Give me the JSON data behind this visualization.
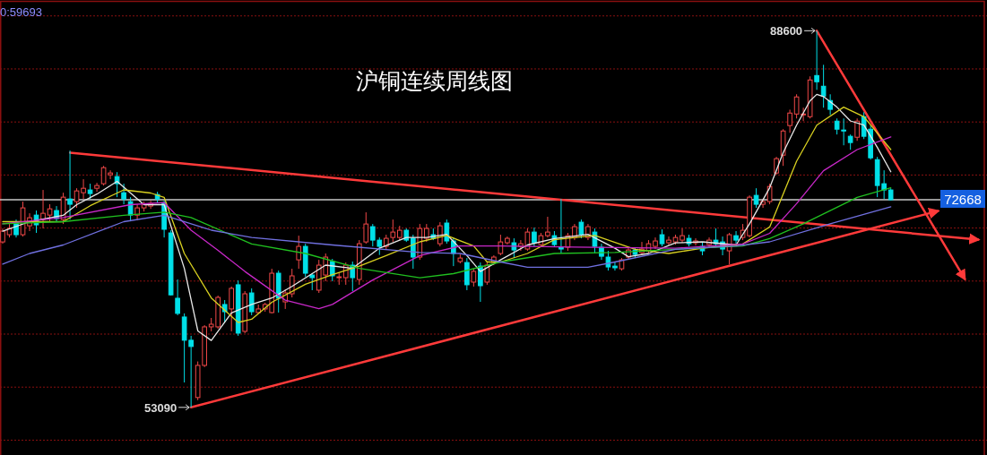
{
  "chart_data": {
    "type": "candlestick",
    "title": "沪铜连续周线图",
    "categories": [
      null,
      null,
      null,
      null,
      null,
      null,
      null,
      null,
      null,
      null,
      null,
      null,
      null,
      null,
      null,
      null,
      null,
      null,
      null,
      null,
      null,
      null,
      null,
      null,
      null,
      null,
      null,
      null,
      null,
      null,
      null,
      null,
      null,
      null,
      null,
      null,
      null,
      null,
      null,
      null,
      null,
      null,
      null,
      null,
      null,
      null,
      null,
      null,
      null,
      null,
      null,
      null,
      null,
      null,
      null,
      null,
      null,
      null,
      null,
      null,
      null,
      null,
      null,
      null,
      null,
      null,
      null,
      null,
      null,
      null,
      null,
      null,
      null,
      null,
      null,
      null,
      null,
      null,
      null,
      null,
      null,
      null,
      null,
      null,
      null,
      null,
      null,
      null,
      null,
      null,
      null,
      null,
      null,
      null,
      null,
      null,
      null,
      null,
      null,
      null,
      null,
      null,
      null,
      null,
      null,
      null,
      null,
      null,
      null,
      null,
      null,
      null,
      null,
      null,
      null,
      null,
      null,
      null,
      null,
      null,
      null,
      null,
      null,
      null,
      null,
      null,
      null,
      null,
      null,
      null,
      null,
      null,
      null,
      null,
      null,
      null,
      null,
      null,
      null,
      null,
      null,
      null,
      null,
      null,
      null,
      null
    ],
    "ohlc": [
      [
        68690,
        69960,
        68520,
        69710
      ],
      [
        69370,
        70380,
        69110,
        69960
      ],
      [
        70550,
        70800,
        69110,
        69370
      ],
      [
        69370,
        72490,
        69200,
        71900
      ],
      [
        70210,
        71390,
        69710,
        70970
      ],
      [
        71220,
        71650,
        69540,
        70300
      ],
      [
        70800,
        73590,
        69960,
        71390
      ],
      [
        71220,
        72240,
        70550,
        71810
      ],
      [
        71650,
        72070,
        70550,
        70890
      ],
      [
        70800,
        73330,
        70380,
        72910
      ],
      [
        72740,
        77300,
        70800,
        72240
      ],
      [
        72490,
        73750,
        71900,
        73500
      ],
      [
        73330,
        74600,
        72740,
        73750
      ],
      [
        73590,
        74180,
        72740,
        73250
      ],
      [
        73750,
        74260,
        73420,
        74010
      ],
      [
        74180,
        75860,
        74010,
        75690
      ],
      [
        75020,
        75440,
        74600,
        75190
      ],
      [
        74850,
        75270,
        72910,
        74180
      ],
      [
        73330,
        74180,
        72240,
        72740
      ],
      [
        72490,
        72910,
        70630,
        71220
      ],
      [
        71220,
        72240,
        70720,
        71900
      ],
      [
        71900,
        72490,
        71560,
        72240
      ],
      [
        72070,
        72570,
        71810,
        72320
      ],
      [
        73160,
        73420,
        72400,
        72740
      ],
      [
        72400,
        72570,
        69110,
        69880
      ],
      [
        69540,
        69790,
        63630,
        63700
      ],
      [
        63380,
        65150,
        61780,
        61950
      ],
      [
        61610,
        61950,
        55440,
        59420
      ],
      [
        59420,
        59840,
        53090,
        58830
      ],
      [
        54020,
        57420,
        53770,
        57050
      ],
      [
        57050,
        60840,
        56890,
        60680
      ],
      [
        60680,
        61520,
        60260,
        60930
      ],
      [
        60680,
        63630,
        60510,
        63460
      ],
      [
        62790,
        63210,
        61100,
        62110
      ],
      [
        62370,
        64480,
        60260,
        64310
      ],
      [
        64650,
        65060,
        59840,
        60090
      ],
      [
        60260,
        64050,
        60090,
        63800
      ],
      [
        63880,
        64310,
        61780,
        62110
      ],
      [
        62030,
        62790,
        61950,
        62370
      ],
      [
        62370,
        62960,
        62110,
        62790
      ],
      [
        62030,
        66160,
        61950,
        65740
      ],
      [
        65740,
        65990,
        62030,
        63380
      ],
      [
        63040,
        64220,
        62370,
        63880
      ],
      [
        63800,
        66160,
        63460,
        65490
      ],
      [
        67000,
        69280,
        66160,
        68270
      ],
      [
        68270,
        68520,
        65400,
        65740
      ],
      [
        65570,
        65740,
        64140,
        65320
      ],
      [
        64140,
        67000,
        63880,
        66500
      ],
      [
        65570,
        67600,
        64990,
        67260
      ],
      [
        66840,
        67090,
        64990,
        65490
      ],
      [
        65320,
        65740,
        64650,
        65400
      ],
      [
        65320,
        66750,
        64650,
        66500
      ],
      [
        66500,
        66840,
        64050,
        65320
      ],
      [
        65150,
        68860,
        64650,
        68520
      ],
      [
        68690,
        71480,
        68520,
        70380
      ],
      [
        70130,
        70380,
        68270,
        68860
      ],
      [
        68860,
        69110,
        67460,
        68270
      ],
      [
        68270,
        69370,
        68020,
        69030
      ],
      [
        69110,
        70800,
        68690,
        69620
      ],
      [
        69110,
        70210,
        68860,
        69790
      ],
      [
        69790,
        69960,
        68690,
        68860
      ],
      [
        69030,
        69370,
        66160,
        67260
      ],
      [
        67260,
        70380,
        67000,
        69960
      ],
      [
        69030,
        70380,
        68690,
        69960
      ],
      [
        69370,
        69960,
        68860,
        69030
      ],
      [
        68520,
        70550,
        68270,
        70210
      ],
      [
        70470,
        70800,
        68520,
        68780
      ],
      [
        68780,
        69110,
        66410,
        67600
      ],
      [
        66840,
        67510,
        66670,
        67170
      ],
      [
        66750,
        67170,
        64140,
        64650
      ],
      [
        64900,
        66160,
        64480,
        65910
      ],
      [
        66410,
        66750,
        63040,
        64560
      ],
      [
        64900,
        66750,
        64650,
        66500
      ],
      [
        66750,
        67430,
        66500,
        67260
      ],
      [
        67600,
        69370,
        67430,
        68690
      ],
      [
        68610,
        69200,
        68440,
        69030
      ],
      [
        68610,
        69030,
        67170,
        67930
      ],
      [
        68270,
        68860,
        67850,
        68520
      ],
      [
        68020,
        69960,
        67850,
        69620
      ],
      [
        69620,
        70040,
        68270,
        68610
      ],
      [
        68440,
        69540,
        68190,
        69280
      ],
      [
        69280,
        71060,
        69110,
        69620
      ],
      [
        69280,
        69710,
        68190,
        68440
      ],
      [
        68190,
        72740,
        67600,
        68020
      ],
      [
        68190,
        69540,
        67850,
        69280
      ],
      [
        69110,
        70380,
        68860,
        70130
      ],
      [
        70550,
        70800,
        69030,
        69370
      ],
      [
        69110,
        70380,
        68860,
        70130
      ],
      [
        69620,
        69960,
        67600,
        68270
      ],
      [
        68190,
        68520,
        67000,
        67340
      ],
      [
        67260,
        67850,
        65990,
        66330
      ],
      [
        66410,
        66840,
        65990,
        66250
      ],
      [
        66160,
        67170,
        65990,
        67000
      ],
      [
        67260,
        68190,
        67000,
        67930
      ],
      [
        67930,
        68190,
        67170,
        67510
      ],
      [
        67680,
        68690,
        67430,
        68020
      ],
      [
        67850,
        68860,
        67600,
        68520
      ],
      [
        68270,
        69110,
        68020,
        68780
      ],
      [
        69370,
        69870,
        68270,
        68520
      ],
      [
        68610,
        69200,
        68350,
        68860
      ],
      [
        68690,
        69370,
        68440,
        69110
      ],
      [
        68860,
        69960,
        68610,
        69280
      ],
      [
        69030,
        69370,
        68270,
        68520
      ],
      [
        68610,
        69030,
        68350,
        68780
      ],
      [
        68270,
        68690,
        67430,
        67850
      ],
      [
        68440,
        69110,
        68190,
        68860
      ],
      [
        68860,
        69960,
        68190,
        68520
      ],
      [
        68690,
        69200,
        67430,
        68020
      ],
      [
        67850,
        69540,
        66580,
        69370
      ],
      [
        69280,
        69710,
        68520,
        68860
      ],
      [
        69110,
        70380,
        68860,
        69790
      ],
      [
        69280,
        73080,
        69110,
        72910
      ],
      [
        73080,
        73750,
        71900,
        72240
      ],
      [
        72240,
        72740,
        71900,
        72490
      ],
      [
        72490,
        74180,
        72240,
        73920
      ],
      [
        75190,
        76710,
        75020,
        76540
      ],
      [
        76870,
        79320,
        75860,
        79150
      ],
      [
        79660,
        81160,
        78980,
        80840
      ],
      [
        80750,
        82610,
        80330,
        82360
      ],
      [
        80670,
        81350,
        80080,
        80750
      ],
      [
        80500,
        84300,
        80330,
        83960
      ],
      [
        84380,
        88600,
        83030,
        83790
      ],
      [
        83370,
        85390,
        81350,
        82440
      ],
      [
        82020,
        82610,
        80670,
        81190
      ],
      [
        80080,
        80330,
        78820,
        79320
      ],
      [
        79240,
        80330,
        77800,
        79150
      ],
      [
        78650,
        78820,
        77380,
        78060
      ],
      [
        78560,
        80330,
        78220,
        80080
      ],
      [
        80500,
        80920,
        78390,
        78650
      ],
      [
        79320,
        79660,
        76450,
        76620
      ],
      [
        76450,
        76710,
        72910,
        74010
      ],
      [
        74180,
        75440,
        72740,
        73590
      ],
      [
        73590,
        73750,
        72600,
        72668
      ],
      null,
      null,
      null,
      null,
      null,
      null,
      null,
      null,
      null,
      null,
      null,
      null,
      null
    ],
    "colors": [
      "#f04848",
      "#f04848",
      "#00e0e8",
      "#f04848",
      "#f04848",
      "#00e0e8",
      "#f04848",
      "#f04848",
      "#00e0e8",
      "#f04848",
      "#00e0e8",
      "#f04848",
      "#f04848",
      "#00e0e8",
      "#f04848",
      "#f04848",
      "#f04848",
      "#00e0e8",
      "#00e0e8",
      "#00e0e8",
      "#f04848",
      "#f04848",
      "#f04848",
      "#00e0e8",
      "#00e0e8",
      "#00e0e8",
      "#00e0e8",
      "#00e0e8",
      "#00e0e8",
      "#f04848",
      "#f04848",
      "#f04848",
      "#f04848",
      "#00e0e8",
      "#f04848",
      "#00e0e8",
      "#f04848",
      "#00e0e8",
      "#f04848",
      "#f04848",
      "#f04848",
      "#00e0e8",
      "#f04848",
      "#f04848",
      "#f04848",
      "#00e0e8",
      "#00e0e8",
      "#f04848",
      "#f04848",
      "#00e0e8",
      "#f04848",
      "#f04848",
      "#00e0e8",
      "#f04848",
      "#f04848",
      "#00e0e8",
      "#00e0e8",
      "#f04848",
      "#f04848",
      "#f04848",
      "#00e0e8",
      "#00e0e8",
      "#f04848",
      "#f04848",
      "#00e0e8",
      "#f04848",
      "#00e0e8",
      "#00e0e8",
      "#f04848",
      "#00e0e8",
      "#f04848",
      "#00e0e8",
      "#f04848",
      "#f04848",
      "#f04848",
      "#f04848",
      "#00e0e8",
      "#f04848",
      "#f04848",
      "#00e0e8",
      "#f04848",
      "#f04848",
      "#00e0e8",
      "#00e0e8",
      "#f04848",
      "#f04848",
      "#00e0e8",
      "#f04848",
      "#00e0e8",
      "#00e0e8",
      "#00e0e8",
      "#00e0e8",
      "#f04848",
      "#f04848",
      "#00e0e8",
      "#f04848",
      "#f04848",
      "#f04848",
      "#00e0e8",
      "#f04848",
      "#f04848",
      "#f04848",
      "#00e0e8",
      "#f04848",
      "#00e0e8",
      "#f04848",
      "#00e0e8",
      "#00e0e8",
      "#f04848",
      "#00e0e8",
      "#f04848",
      "#f04848",
      "#00e0e8",
      "#f04848",
      "#f04848",
      "#f04848",
      "#f04848",
      "#f04848",
      "#f04848",
      "#f04848",
      "#f04848",
      "#00e0e8",
      "#00e0e8",
      "#00e0e8",
      "#00e0e8",
      "#00e0e8",
      "#00e0e8",
      "#f04848",
      "#00e0e8",
      "#00e0e8",
      "#00e0e8",
      "#00e0e8",
      "#00e0e8",
      null,
      null,
      null,
      null,
      null,
      null,
      null,
      null,
      null,
      null,
      null,
      null,
      null
    ],
    "series": [
      {
        "type": "line",
        "color": "#e8e8e8",
        "values": [
          69700,
          null,
          null,
          null,
          70600,
          null,
          null,
          null,
          null,
          71200,
          null,
          72200,
          null,
          null,
          73200,
          null,
          null,
          74400,
          null,
          null,
          null,
          72200,
          null,
          null,
          72200,
          null,
          null,
          66200,
          null,
          60300,
          null,
          59400,
          null,
          null,
          62000,
          null,
          null,
          62800,
          null,
          null,
          63400,
          null,
          null,
          64500,
          null,
          null,
          null,
          null,
          66500,
          null,
          null,
          null,
          66200,
          null,
          null,
          null,
          68100,
          null,
          null,
          null,
          69100,
          null,
          null,
          69100,
          null,
          null,
          69400,
          null,
          null,
          67400,
          null,
          65900,
          null,
          null,
          67000,
          null,
          null,
          null,
          68400,
          null,
          null,
          null,
          69000,
          null,
          null,
          null,
          null,
          69400,
          null,
          null,
          null,
          68100,
          null,
          67300,
          null,
          null,
          67600,
          null,
          null,
          null,
          68600,
          null,
          null,
          null,
          68700,
          null,
          null,
          null,
          null,
          68400,
          null,
          70400,
          null,
          null,
          73800,
          null,
          77100,
          null,
          79700,
          null,
          82000,
          82600,
          82400,
          null,
          81400,
          null,
          80100,
          null,
          79700,
          null,
          77600,
          null,
          75300,
          null,
          null,
          null,
          null,
          null,
          null,
          null,
          null,
          null,
          null,
          null,
          null,
          null
        ]
      },
      {
        "type": "line",
        "color": "#d8d020",
        "values": [
          70600,
          null,
          null,
          null,
          null,
          null,
          null,
          null,
          null,
          70600,
          null,
          null,
          null,
          72100,
          null,
          null,
          null,
          null,
          73600,
          null,
          null,
          null,
          73300,
          null,
          72900,
          null,
          null,
          67600,
          null,
          null,
          null,
          63400,
          null,
          null,
          null,
          61100,
          null,
          61400,
          null,
          null,
          63000,
          null,
          null,
          null,
          null,
          64700,
          null,
          null,
          null,
          65600,
          null,
          null,
          null,
          66400,
          null,
          null,
          null,
          67400,
          null,
          null,
          null,
          null,
          68700,
          null,
          null,
          null,
          69300,
          null,
          null,
          null,
          68300,
          null,
          66800,
          null,
          66800,
          null,
          null,
          null,
          67600,
          null,
          null,
          null,
          68900,
          null,
          null,
          null,
          null,
          null,
          69300,
          null,
          null,
          null,
          null,
          null,
          68000,
          null,
          null,
          null,
          null,
          67600,
          null,
          null,
          null,
          null,
          68100,
          null,
          null,
          null,
          null,
          null,
          68500,
          null,
          null,
          null,
          70100,
          null,
          null,
          null,
          76300,
          null,
          null,
          79700,
          null,
          null,
          null,
          81400,
          null,
          null,
          80500,
          null,
          null,
          null,
          77400,
          null,
          null,
          null,
          null,
          null,
          null,
          null,
          null,
          null,
          null,
          null,
          null,
          null
        ]
      },
      {
        "type": "line",
        "color": "#c828c8",
        "values": [
          70400,
          null,
          null,
          null,
          null,
          null,
          null,
          null,
          null,
          71000,
          null,
          null,
          null,
          null,
          null,
          null,
          null,
          null,
          null,
          72200,
          null,
          null,
          null,
          null,
          72400,
          null,
          null,
          null,
          69800,
          null,
          null,
          null,
          67900,
          null,
          null,
          null,
          65900,
          null,
          null,
          null,
          null,
          null,
          63200,
          null,
          null,
          null,
          null,
          62400,
          null,
          62800,
          null,
          null,
          null,
          null,
          null,
          65100,
          null,
          null,
          null,
          null,
          null,
          null,
          67400,
          null,
          null,
          null,
          null,
          null,
          68300,
          null,
          null,
          null,
          null,
          null,
          68300,
          null,
          null,
          null,
          null,
          null,
          null,
          null,
          null,
          null,
          null,
          68200,
          null,
          null,
          null,
          null,
          null,
          null,
          null,
          null,
          null,
          null,
          null,
          null,
          null,
          null,
          68100,
          null,
          null,
          null,
          null,
          null,
          null,
          null,
          null,
          null,
          68500,
          null,
          null,
          null,
          69500,
          null,
          null,
          null,
          72300,
          null,
          null,
          null,
          75400,
          null,
          null,
          null,
          null,
          77400,
          null,
          null,
          null,
          null,
          78600,
          null,
          null,
          null,
          null,
          null,
          null,
          null,
          null,
          null,
          null,
          null,
          null,
          null
        ]
      },
      {
        "type": "line",
        "color": "#20c020",
        "values": [
          70400,
          null,
          null,
          null,
          null,
          null,
          null,
          null,
          null,
          70600,
          null,
          null,
          null,
          null,
          null,
          null,
          null,
          null,
          71200,
          null,
          null,
          null,
          null,
          null,
          71500,
          null,
          null,
          null,
          71000,
          null,
          null,
          null,
          null,
          null,
          null,
          null,
          null,
          68500,
          null,
          null,
          null,
          null,
          null,
          null,
          null,
          67600,
          null,
          null,
          null,
          null,
          null,
          null,
          null,
          66200,
          null,
          null,
          null,
          null,
          null,
          null,
          null,
          null,
          65300,
          null,
          null,
          null,
          null,
          65700,
          null,
          null,
          null,
          null,
          null,
          null,
          66800,
          null,
          null,
          null,
          null,
          null,
          null,
          null,
          67600,
          null,
          null,
          null,
          null,
          null,
          null,
          null,
          null,
          67700,
          null,
          null,
          null,
          null,
          null,
          null,
          null,
          null,
          68000,
          null,
          null,
          null,
          null,
          null,
          null,
          null,
          null,
          null,
          68300,
          null,
          null,
          null,
          69000,
          null,
          null,
          null,
          null,
          70400,
          null,
          null,
          null,
          null,
          null,
          null,
          null,
          72900,
          null,
          null,
          null,
          null,
          73800,
          null,
          null,
          null,
          null,
          null,
          null,
          null,
          null,
          null,
          null,
          null,
          null,
          null
        ]
      },
      {
        "type": "line",
        "color": "#7070e0",
        "values": [
          66600,
          null,
          null,
          null,
          67600,
          null,
          null,
          null,
          null,
          68400,
          null,
          null,
          null,
          null,
          null,
          null,
          null,
          null,
          70600,
          null,
          null,
          null,
          null,
          null,
          71200,
          null,
          null,
          null,
          null,
          null,
          null,
          69800,
          null,
          null,
          null,
          null,
          null,
          69100,
          null,
          null,
          null,
          null,
          null,
          null,
          null,
          null,
          null,
          null,
          null,
          68400,
          null,
          null,
          null,
          null,
          null,
          null,
          null,
          null,
          null,
          null,
          null,
          null,
          67700,
          null,
          null,
          null,
          null,
          null,
          67600,
          null,
          null,
          null,
          null,
          null,
          66800,
          null,
          null,
          null,
          66300,
          null,
          null,
          null,
          null,
          null,
          null,
          null,
          null,
          66300,
          null,
          null,
          null,
          66800,
          null,
          null,
          null,
          null,
          null,
          null,
          null,
          null,
          68000,
          null,
          null,
          null,
          null,
          null,
          null,
          null,
          null,
          68300,
          null,
          null,
          null,
          null,
          68700,
          null,
          null,
          null,
          null,
          null,
          null,
          null,
          null,
          70400,
          null,
          null,
          null,
          null,
          null,
          null,
          null,
          null,
          72000,
          null,
          null,
          null,
          null,
          null,
          null,
          null,
          null,
          null,
          null,
          null,
          null,
          null
        ]
      },
      {
        "type": "line",
        "color": "#ff3a3a",
        "values": [
          null,
          null,
          null,
          null,
          null,
          null,
          null,
          null,
          null,
          null,
          77100,
          null,
          null,
          null,
          null,
          null,
          null,
          null,
          null,
          null,
          null,
          null,
          null,
          null,
          null,
          null,
          null,
          null,
          null,
          null,
          null,
          null,
          null,
          null,
          null,
          null,
          null,
          null,
          null,
          null,
          null,
          null,
          null,
          null,
          null,
          null,
          null,
          null,
          null,
          null,
          null,
          null,
          null,
          null,
          null,
          null,
          null,
          null,
          null,
          null,
          null,
          null,
          null,
          null,
          null,
          null,
          null,
          null,
          null,
          null,
          null,
          null,
          null,
          null,
          null,
          null,
          null,
          null,
          null,
          null,
          null,
          null,
          null,
          null,
          null,
          null,
          null,
          null,
          null,
          null,
          null,
          null,
          null,
          null,
          null,
          null,
          null,
          null,
          null,
          null,
          null,
          null,
          null,
          null,
          null,
          null,
          null,
          null,
          null,
          null,
          null,
          null,
          null,
          null,
          null,
          null,
          null,
          null,
          null,
          null,
          null,
          null,
          null,
          null,
          null,
          null,
          null,
          null,
          null,
          null,
          null,
          null,
          null,
          null,
          null,
          null,
          null,
          null,
          null,
          null,
          null,
          null,
          null,
          null,
          null,
          68900
        ]
      },
      {
        "type": "line",
        "color": "#ff3a3a",
        "values": [
          null,
          null,
          null,
          null,
          null,
          null,
          null,
          null,
          null,
          null,
          null,
          null,
          null,
          null,
          null,
          null,
          null,
          null,
          null,
          null,
          null,
          null,
          null,
          null,
          null,
          null,
          null,
          null,
          53100,
          null,
          null,
          null,
          null,
          null,
          null,
          null,
          null,
          null,
          null,
          null,
          null,
          null,
          null,
          null,
          null,
          null,
          null,
          null,
          null,
          null,
          null,
          null,
          null,
          null,
          null,
          null,
          null,
          null,
          null,
          null,
          null,
          null,
          null,
          null,
          null,
          null,
          null,
          null,
          null,
          null,
          null,
          null,
          null,
          null,
          null,
          null,
          null,
          null,
          null,
          null,
          null,
          null,
          null,
          null,
          null,
          null,
          null,
          null,
          null,
          null,
          null,
          null,
          null,
          null,
          null,
          null,
          null,
          null,
          null,
          null,
          null,
          null,
          null,
          null,
          null,
          null,
          null,
          null,
          null,
          null,
          null,
          null,
          null,
          null,
          null,
          null,
          null,
          null,
          null,
          null,
          null,
          null,
          null,
          null,
          null,
          null,
          null,
          null,
          null,
          null,
          null,
          null,
          null,
          null,
          null,
          null,
          null,
          null,
          null,
          71600,
          null,
          null,
          null,
          null,
          null,
          null
        ]
      },
      {
        "type": "line",
        "color": "#ff3a3a",
        "values": [
          null,
          null,
          null,
          null,
          null,
          null,
          null,
          null,
          null,
          null,
          null,
          null,
          null,
          null,
          null,
          null,
          null,
          null,
          null,
          null,
          null,
          null,
          null,
          null,
          null,
          null,
          null,
          null,
          null,
          null,
          null,
          null,
          null,
          null,
          null,
          null,
          null,
          null,
          null,
          null,
          null,
          null,
          null,
          null,
          null,
          null,
          null,
          null,
          null,
          null,
          null,
          null,
          null,
          null,
          null,
          null,
          null,
          null,
          null,
          null,
          null,
          null,
          null,
          null,
          null,
          null,
          null,
          null,
          null,
          null,
          null,
          null,
          null,
          null,
          null,
          null,
          null,
          null,
          null,
          null,
          null,
          null,
          null,
          null,
          null,
          null,
          null,
          null,
          null,
          null,
          null,
          null,
          null,
          null,
          null,
          null,
          null,
          null,
          null,
          null,
          null,
          null,
          null,
          null,
          null,
          null,
          null,
          null,
          null,
          null,
          null,
          null,
          null,
          null,
          null,
          null,
          null,
          null,
          null,
          null,
          null,
          88600,
          null,
          null,
          null,
          null,
          null,
          null,
          null,
          null,
          null,
          null,
          null,
          null,
          null,
          null,
          null,
          null,
          null,
          null,
          null,
          null,
          null,
          65200,
          null,
          null
        ]
      }
    ],
    "ylim": [
      48600,
      91500
    ],
    "yticks": [
      {
        "value": 50000,
        "label": null
      },
      {
        "value": 55000,
        "label": null
      },
      {
        "value": 60000,
        "label": null
      },
      {
        "value": 65000,
        "label": null
      },
      {
        "value": 70000,
        "label": null
      },
      {
        "value": 75000,
        "label": null
      },
      {
        "value": 80000,
        "label": null
      },
      {
        "value": 85000,
        "label": null
      },
      {
        "value": 90000,
        "label": null
      }
    ],
    "grid": "y",
    "ref_lines": [
      {
        "axis": "y",
        "value": 72668,
        "label": "72668",
        "color": "#c8c8c8"
      }
    ],
    "annotations": [
      "0:59693",
      "88600",
      "53090"
    ]
  }
}
